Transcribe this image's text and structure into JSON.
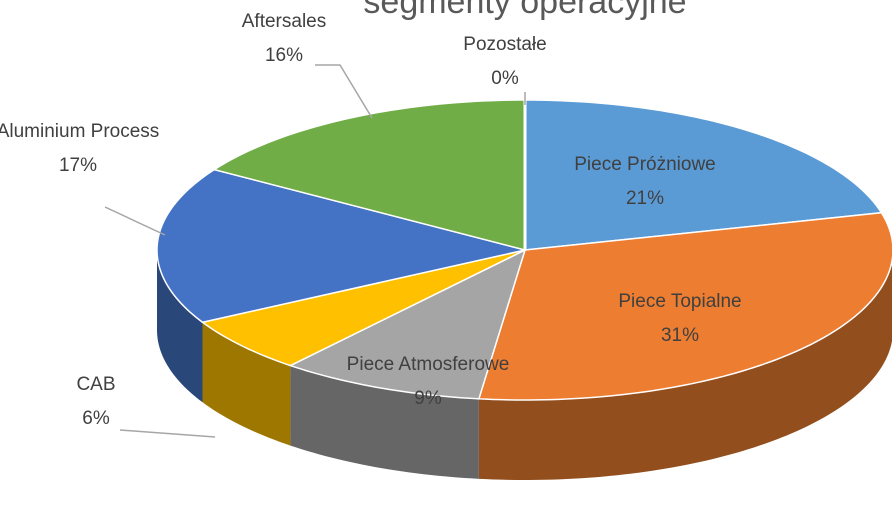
{
  "chart_data": {
    "type": "pie3d",
    "title": "segmenty operacyjne",
    "categories": [
      "Piece Próżniowe",
      "Piece Topialne",
      "Piece Atmosferowe",
      "CAB",
      "Aluminium Process",
      "Aftersales",
      "Pozostałe"
    ],
    "values": [
      21,
      31,
      9,
      6,
      17,
      16,
      0
    ],
    "value_labels": [
      "21%",
      "31%",
      "9%",
      "6%",
      "17%",
      "16%",
      "0%"
    ],
    "colors": [
      "#5b9bd5",
      "#ed7d31",
      "#a5a5a5",
      "#ffc000",
      "#4472c4",
      "#70ad47",
      "#264478"
    ]
  }
}
